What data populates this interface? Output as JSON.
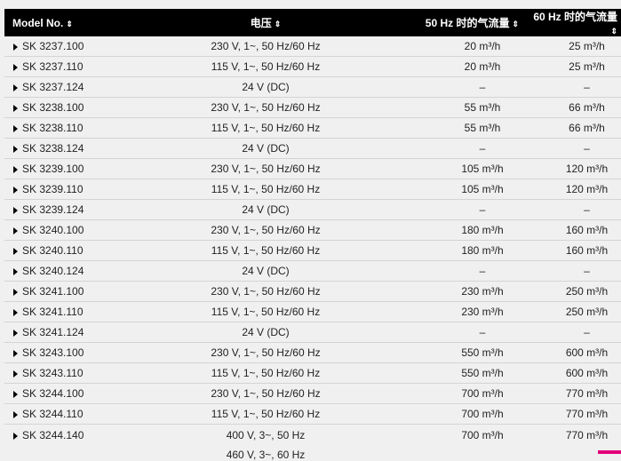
{
  "headers": [
    "Model No.",
    "电压",
    "50 Hz 时的气流量",
    "60 Hz 时的气流量"
  ],
  "sort_icon": "⇕",
  "rows": [
    {
      "model": "SK 3237.100",
      "voltage": "230 V, 1~, 50 Hz/60 Hz",
      "flow50": "20 m³/h",
      "flow60": "25 m³/h"
    },
    {
      "model": "SK 3237.110",
      "voltage": "115 V, 1~, 50 Hz/60 Hz",
      "flow50": "20 m³/h",
      "flow60": "25 m³/h"
    },
    {
      "model": "SK 3237.124",
      "voltage": "24 V (DC)",
      "flow50": "–",
      "flow60": "–"
    },
    {
      "model": "SK 3238.100",
      "voltage": "230 V, 1~, 50 Hz/60 Hz",
      "flow50": "55 m³/h",
      "flow60": "66 m³/h"
    },
    {
      "model": "SK 3238.110",
      "voltage": "115 V, 1~, 50 Hz/60 Hz",
      "flow50": "55 m³/h",
      "flow60": "66 m³/h"
    },
    {
      "model": "SK 3238.124",
      "voltage": "24 V (DC)",
      "flow50": "–",
      "flow60": "–"
    },
    {
      "model": "SK 3239.100",
      "voltage": "230 V, 1~, 50 Hz/60 Hz",
      "flow50": "105 m³/h",
      "flow60": "120 m³/h"
    },
    {
      "model": "SK 3239.110",
      "voltage": "115 V, 1~, 50 Hz/60 Hz",
      "flow50": "105 m³/h",
      "flow60": "120 m³/h"
    },
    {
      "model": "SK 3239.124",
      "voltage": "24 V (DC)",
      "flow50": "–",
      "flow60": "–"
    },
    {
      "model": "SK 3240.100",
      "voltage": "230 V, 1~, 50 Hz/60 Hz",
      "flow50": "180 m³/h",
      "flow60": "160 m³/h"
    },
    {
      "model": "SK 3240.110",
      "voltage": "115 V, 1~, 50 Hz/60 Hz",
      "flow50": "180 m³/h",
      "flow60": "160 m³/h"
    },
    {
      "model": "SK 3240.124",
      "voltage": "24 V (DC)",
      "flow50": "–",
      "flow60": "–"
    },
    {
      "model": "SK 3241.100",
      "voltage": "230 V, 1~, 50 Hz/60 Hz",
      "flow50": "230 m³/h",
      "flow60": "250 m³/h"
    },
    {
      "model": "SK 3241.110",
      "voltage": "115 V, 1~, 50 Hz/60 Hz",
      "flow50": "230 m³/h",
      "flow60": "250 m³/h"
    },
    {
      "model": "SK 3241.124",
      "voltage": "24 V (DC)",
      "flow50": "–",
      "flow60": "–"
    },
    {
      "model": "SK 3243.100",
      "voltage": "230 V, 1~, 50 Hz/60 Hz",
      "flow50": "550 m³/h",
      "flow60": "600 m³/h"
    },
    {
      "model": "SK 3243.110",
      "voltage": "115 V, 1~, 50 Hz/60 Hz",
      "flow50": "550 m³/h",
      "flow60": "600 m³/h"
    },
    {
      "model": "SK 3244.100",
      "voltage": "230 V, 1~, 50 Hz/60 Hz",
      "flow50": "700 m³/h",
      "flow60": "770 m³/h"
    },
    {
      "model": "SK 3244.110",
      "voltage": "115 V, 1~, 50 Hz/60 Hz",
      "flow50": "700 m³/h",
      "flow60": "770 m³/h"
    }
  ],
  "last_row": {
    "model": "SK 3244.140",
    "voltage": "400 V, 3~, 50 Hz",
    "voltage2": "460 V, 3~, 60 Hz",
    "flow50": "700 m³/h",
    "flow60": "770 m³/h"
  },
  "accent_color": "#e2007a"
}
